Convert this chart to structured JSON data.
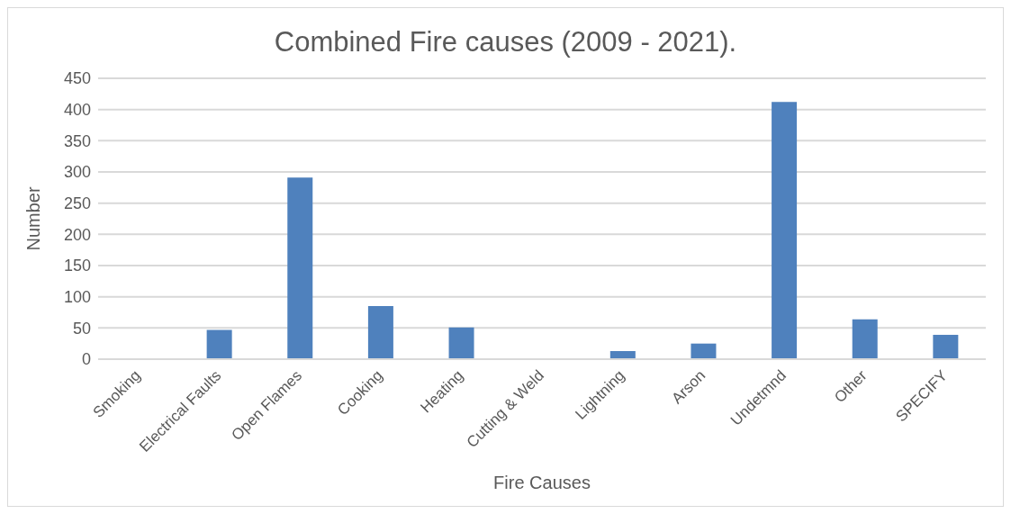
{
  "chart_data": {
    "type": "bar",
    "title": "Combined Fire causes (2009 - 2021).",
    "xlabel": "Fire Causes",
    "ylabel": "Number",
    "categories": [
      "Smoking",
      "Electrical Faults",
      "Open Flames",
      "Cooking",
      "Heating",
      "Cutting & Weld",
      "Lightning",
      "Arson",
      "Undetmnd",
      "Other",
      "SPECIFY"
    ],
    "values": [
      0,
      47,
      291,
      85,
      51,
      0,
      13,
      25,
      412,
      64,
      39
    ],
    "color": "#4f81bd",
    "ylim": [
      0,
      450
    ],
    "yticks": [
      0,
      50,
      100,
      150,
      200,
      250,
      300,
      350,
      400,
      450
    ],
    "grid": "y"
  }
}
